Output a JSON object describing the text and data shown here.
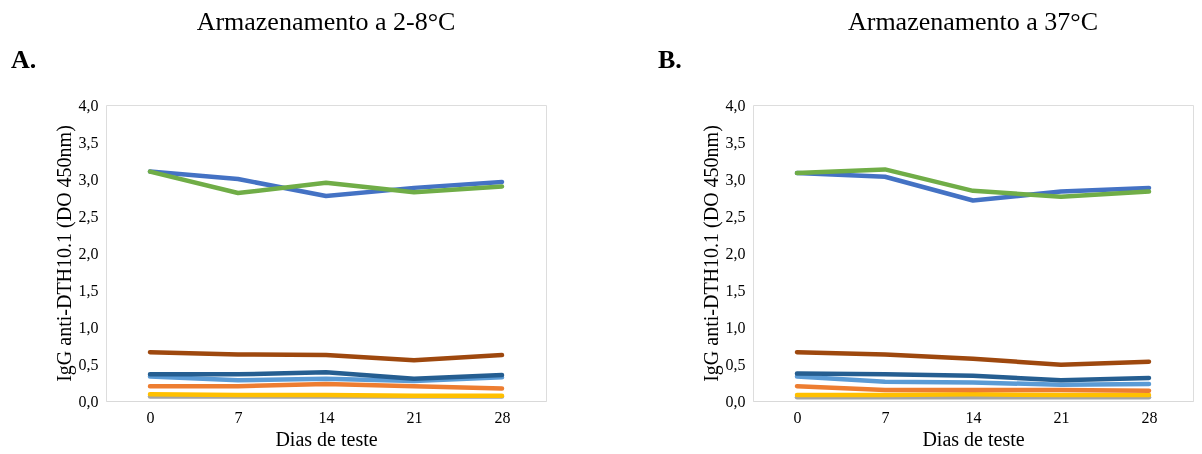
{
  "chart_data": [
    {
      "type": "line",
      "title": "Armazenamento a 2-8°C",
      "xlabel": "Dias de teste",
      "ylabel": "IgG anti-DTH10.1 (DO 450nm)",
      "annotations": [
        "A."
      ],
      "categories": [
        "0",
        "7",
        "14",
        "21",
        "28"
      ],
      "ylim": [
        0,
        4
      ],
      "yticks": [
        {
          "value": 0,
          "label": "0,0"
        },
        {
          "value": 0.5,
          "label": "0,5"
        },
        {
          "value": 1,
          "label": "1,0"
        },
        {
          "value": 1.5,
          "label": "1,5"
        },
        {
          "value": 2,
          "label": "2,0"
        },
        {
          "value": 2.5,
          "label": "2,5"
        },
        {
          "value": 3,
          "label": "3,0"
        },
        {
          "value": 3.5,
          "label": "3,5"
        },
        {
          "value": 4,
          "label": "4,0"
        }
      ],
      "grid": false,
      "legend": false,
      "marker": "none",
      "line_style": "solid",
      "series": [
        {
          "color": "#a5a5a5",
          "values": [
            0.06,
            0.06,
            0.06,
            0.06,
            0.06
          ]
        },
        {
          "color": "#ffc000",
          "values": [
            0.09,
            0.08,
            0.08,
            0.07,
            0.07
          ]
        },
        {
          "color": "#ed7d31",
          "values": [
            0.2,
            0.2,
            0.23,
            0.2,
            0.17
          ]
        },
        {
          "color": "#5b9bd5",
          "values": [
            0.33,
            0.28,
            0.3,
            0.27,
            0.32
          ]
        },
        {
          "color": "#255e91",
          "values": [
            0.36,
            0.36,
            0.39,
            0.3,
            0.35
          ]
        },
        {
          "color": "#9e480e",
          "values": [
            0.66,
            0.63,
            0.62,
            0.55,
            0.62
          ]
        },
        {
          "color": "#4472c4",
          "values": [
            3.1,
            3.0,
            2.77,
            2.88,
            2.96
          ]
        },
        {
          "color": "#70ad47",
          "values": [
            3.1,
            2.81,
            2.95,
            2.82,
            2.9
          ]
        }
      ]
    },
    {
      "type": "line",
      "title": "Armazenamento a 37°C",
      "xlabel": "Dias de teste",
      "ylabel": "IgG anti-DTH10.1 (DO 450nm)",
      "annotations": [
        "B."
      ],
      "categories": [
        "0",
        "7",
        "14",
        "21",
        "28"
      ],
      "ylim": [
        0,
        4
      ],
      "yticks": [
        {
          "value": 0,
          "label": "0,0"
        },
        {
          "value": 0.5,
          "label": "0,5"
        },
        {
          "value": 1,
          "label": "1,0"
        },
        {
          "value": 1.5,
          "label": "1,5"
        },
        {
          "value": 2,
          "label": "2,0"
        },
        {
          "value": 2.5,
          "label": "2,5"
        },
        {
          "value": 3,
          "label": "3,0"
        },
        {
          "value": 3.5,
          "label": "3,5"
        },
        {
          "value": 4,
          "label": "4,0"
        }
      ],
      "grid": false,
      "legend": false,
      "marker": "none",
      "line_style": "solid",
      "series": [
        {
          "color": "#a5a5a5",
          "values": [
            0.05,
            0.05,
            0.05,
            0.05,
            0.05
          ]
        },
        {
          "color": "#ffc000",
          "values": [
            0.08,
            0.08,
            0.09,
            0.08,
            0.08
          ]
        },
        {
          "color": "#ed7d31",
          "values": [
            0.2,
            0.15,
            0.15,
            0.15,
            0.14
          ]
        },
        {
          "color": "#5b9bd5",
          "values": [
            0.33,
            0.26,
            0.25,
            0.22,
            0.23
          ]
        },
        {
          "color": "#255e91",
          "values": [
            0.37,
            0.36,
            0.34,
            0.28,
            0.31
          ]
        },
        {
          "color": "#9e480e",
          "values": [
            0.66,
            0.63,
            0.57,
            0.49,
            0.53
          ]
        },
        {
          "color": "#4472c4",
          "values": [
            3.08,
            3.03,
            2.71,
            2.83,
            2.88
          ]
        },
        {
          "color": "#70ad47",
          "values": [
            3.08,
            3.13,
            2.84,
            2.76,
            2.83
          ]
        }
      ]
    }
  ]
}
